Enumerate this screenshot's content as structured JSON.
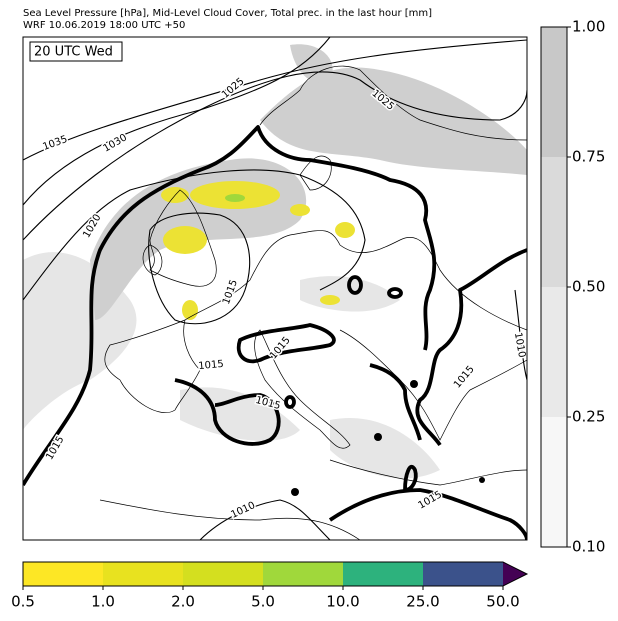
{
  "header": {
    "line1": "Sea Level Pressure [hPa], Mid-Level Cloud Cover, Total prec. in the last hour [mm]",
    "line2": "WRF 10.06.2019 18:00 UTC +50"
  },
  "map": {
    "time_label": "20 UTC Wed",
    "isobar_labels": [
      "1035",
      "1030",
      "1025",
      "1025",
      "1020",
      "1015",
      "1015",
      "1015",
      "1015",
      "1015",
      "1015",
      "1010",
      "1010",
      "1015"
    ]
  },
  "cloud_colorbar": {
    "labels": [
      "1.00",
      "0.75",
      "0.50",
      "0.25",
      "0.10"
    ],
    "colors": [
      "#c8c8c8",
      "#dadada",
      "#e9e9e9",
      "#f7f7f7"
    ]
  },
  "precip_colorbar": {
    "labels": [
      "0.5",
      "1.0",
      "2.0",
      "5.0",
      "10.0",
      "25.0",
      "50.0"
    ],
    "colors": [
      "#fde725",
      "#e8e21f",
      "#d4df1f",
      "#a0d83b",
      "#2db27d",
      "#3b528b"
    ],
    "extend_color": "#440154"
  }
}
